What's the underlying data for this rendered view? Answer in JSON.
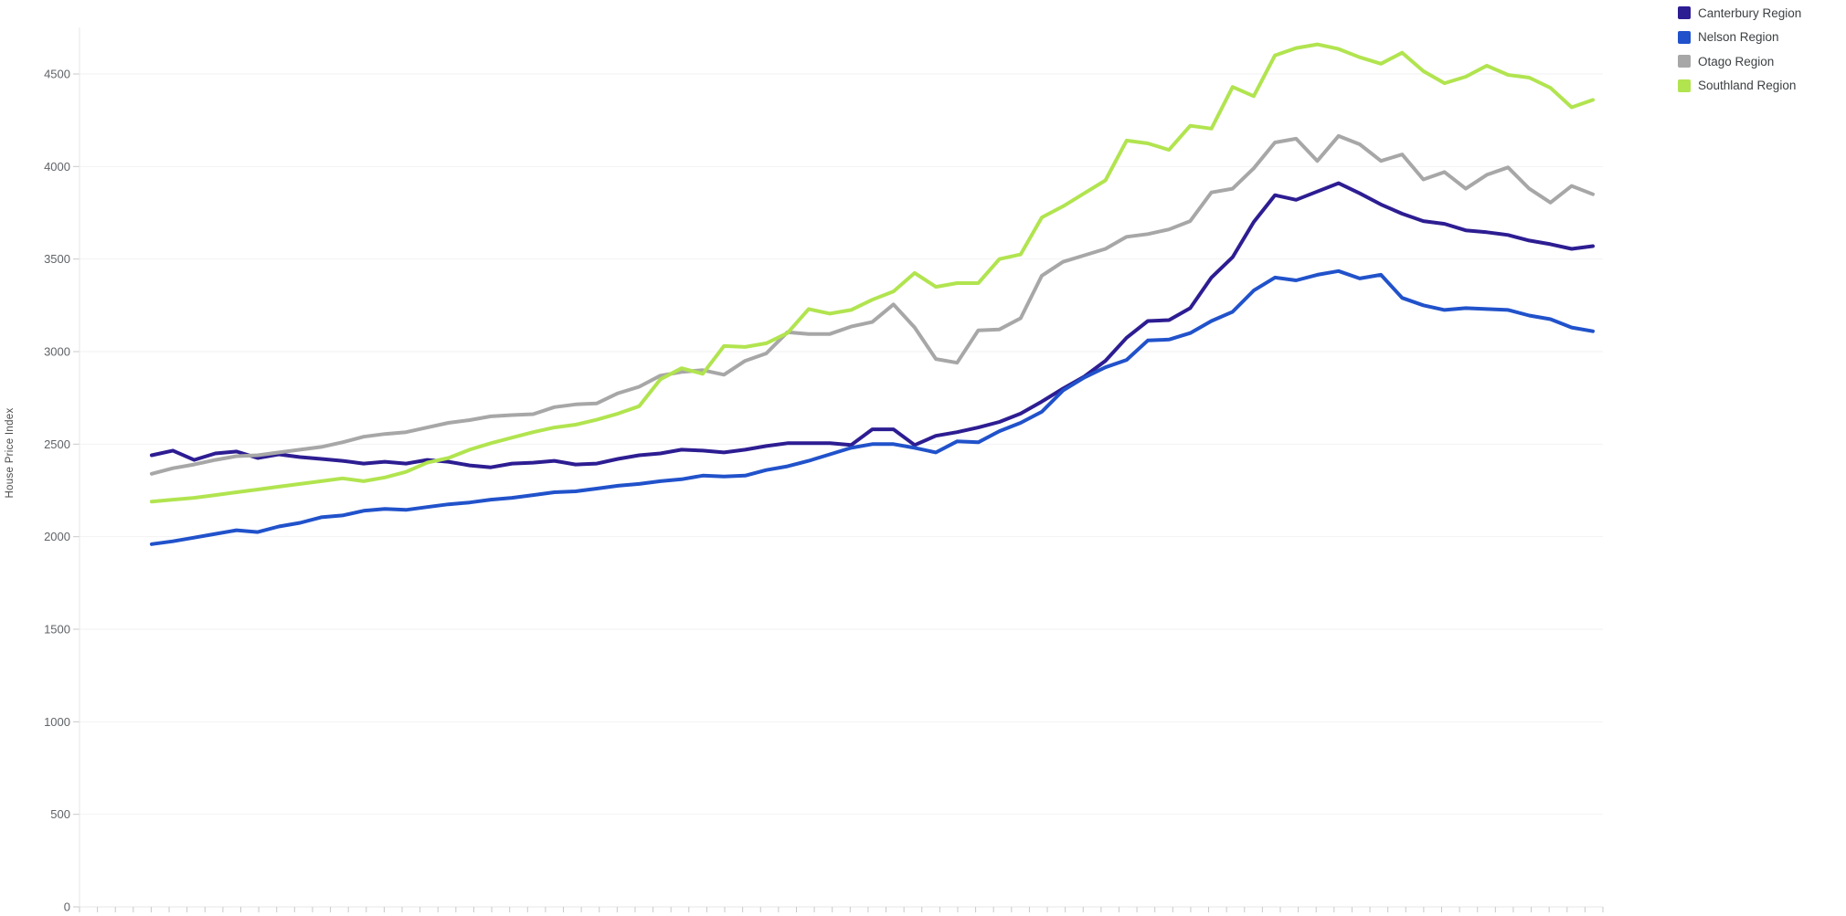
{
  "chart_data": {
    "type": "line",
    "title": "",
    "xlabel": "",
    "ylabel": "House Price Index",
    "ylim": [
      0,
      4900
    ],
    "grid": true,
    "legend_position": "top-right",
    "x_axis_labels_visible": false,
    "y_ticks": [
      0,
      500,
      1000,
      1500,
      2000,
      2500,
      3000,
      3500,
      4000,
      4500
    ],
    "colors": {
      "canterbury": "#2d1d92",
      "nelson": "#2152cb",
      "otago": "#a7a7a7",
      "southland": "#b1e44f",
      "gridline": "#f2f2f2",
      "axis_line": "#e7e7e7",
      "tick": "#c9c9c9",
      "tick_label": "#5f6368",
      "background": "#ffffff"
    },
    "series": [
      {
        "name": "Canterbury Region",
        "color": "#2d1d92",
        "values": [
          2440,
          2465,
          2415,
          2450,
          2460,
          2425,
          2445,
          2430,
          2420,
          2410,
          2395,
          2405,
          2395,
          2415,
          2405,
          2385,
          2375,
          2395,
          2400,
          2410,
          2390,
          2395,
          2420,
          2440,
          2450,
          2470,
          2465,
          2455,
          2470,
          2490,
          2505,
          2505,
          2505,
          2495,
          2580,
          2580,
          2495,
          2545,
          2565,
          2590,
          2620,
          2665,
          2730,
          2800,
          2865,
          2950,
          3075,
          3165,
          3170,
          3235,
          3400,
          3510,
          3700,
          3845,
          3820,
          3865,
          3910,
          3855,
          3795,
          3745,
          3705,
          3690,
          3655,
          3645,
          3630,
          3600,
          3580,
          3555,
          3570
        ]
      },
      {
        "name": "Nelson Region",
        "color": "#2152cb",
        "values": [
          1960,
          1975,
          1995,
          2015,
          2035,
          2025,
          2055,
          2075,
          2105,
          2115,
          2140,
          2150,
          2145,
          2160,
          2175,
          2185,
          2200,
          2210,
          2225,
          2240,
          2245,
          2260,
          2275,
          2285,
          2300,
          2310,
          2330,
          2325,
          2330,
          2360,
          2380,
          2410,
          2445,
          2480,
          2500,
          2500,
          2480,
          2455,
          2515,
          2510,
          2570,
          2615,
          2675,
          2790,
          2860,
          2915,
          2955,
          3060,
          3065,
          3100,
          3165,
          3215,
          3330,
          3400,
          3385,
          3415,
          3435,
          3395,
          3415,
          3290,
          3250,
          3225,
          3235,
          3230,
          3225,
          3195,
          3175,
          3130,
          3110
        ]
      },
      {
        "name": "Otago Region",
        "color": "#a7a7a7",
        "values": [
          2340,
          2370,
          2390,
          2415,
          2435,
          2440,
          2455,
          2470,
          2485,
          2510,
          2540,
          2555,
          2565,
          2590,
          2615,
          2630,
          2650,
          2657,
          2662,
          2700,
          2715,
          2720,
          2775,
          2810,
          2870,
          2890,
          2900,
          2875,
          2950,
          2990,
          3105,
          3095,
          3095,
          3135,
          3160,
          3255,
          3130,
          2960,
          2940,
          3115,
          3120,
          3180,
          3410,
          3485,
          3520,
          3555,
          3620,
          3635,
          3660,
          3705,
          3860,
          3880,
          3990,
          4130,
          4150,
          4030,
          4165,
          4120,
          4030,
          4065,
          3930,
          3970,
          3880,
          3955,
          3995,
          3880,
          3805,
          3895,
          3850
        ]
      },
      {
        "name": "Southland Region",
        "color": "#b1e44f",
        "values": [
          2190,
          2200,
          2210,
          2225,
          2240,
          2255,
          2270,
          2285,
          2300,
          2315,
          2300,
          2320,
          2350,
          2400,
          2425,
          2470,
          2505,
          2535,
          2565,
          2590,
          2605,
          2632,
          2665,
          2705,
          2850,
          2910,
          2880,
          3030,
          3025,
          3045,
          3100,
          3230,
          3205,
          3225,
          3280,
          3325,
          3425,
          3350,
          3370,
          3370,
          3500,
          3525,
          3725,
          3785,
          3855,
          3925,
          4140,
          4125,
          4090,
          4220,
          4205,
          4430,
          4380,
          4600,
          4640,
          4660,
          4635,
          4590,
          4555,
          4615,
          4515,
          4450,
          4485,
          4545,
          4495,
          4480,
          4425,
          4320,
          4360
        ]
      }
    ]
  },
  "legend": {
    "items": [
      {
        "label": "Canterbury Region",
        "color": "#2d1d92"
      },
      {
        "label": "Nelson Region",
        "color": "#2152cb"
      },
      {
        "label": "Otago Region",
        "color": "#a7a7a7"
      },
      {
        "label": "Southland Region",
        "color": "#b1e44f"
      }
    ]
  }
}
